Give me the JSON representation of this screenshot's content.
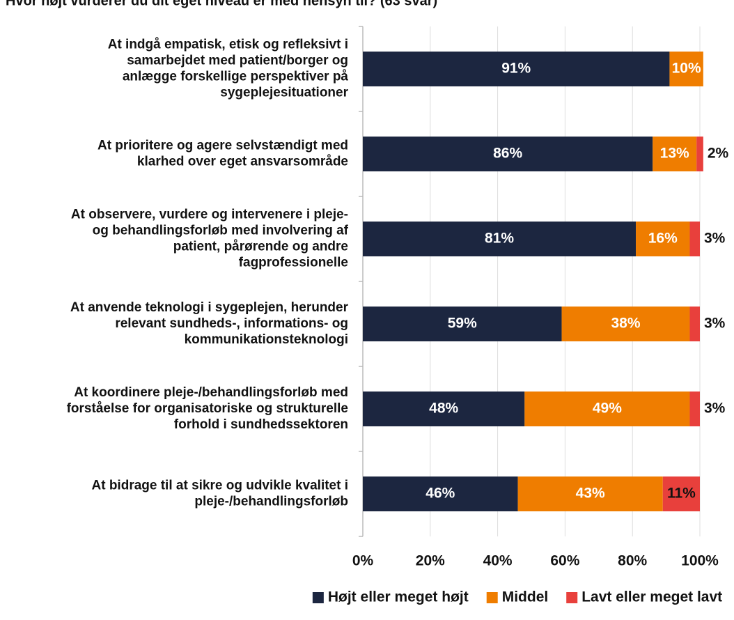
{
  "chart_data": {
    "type": "stacked_barh",
    "title": "Hvor højt vurderer du dit eget niveau er med hensyn til? (63 svar)",
    "categories": [
      [
        "At indgå empatisk, etisk og refleksivt i",
        "samarbejdet med patient/borger og",
        "anlægge forskellige perspektiver på",
        "sygeplejesituationer"
      ],
      [
        "At prioritere og agere selvstændigt med",
        "klarhed over eget ansvarsområde"
      ],
      [
        "At observere, vurdere og intervenere i pleje-",
        "og behandlingsforløb med involvering af",
        "patient, pårørende og andre",
        "fagprofessionelle"
      ],
      [
        "At anvende teknologi i sygeplejen, herunder",
        "relevant sundheds-, informations- og",
        "kommunikationsteknologi"
      ],
      [
        "At koordinere pleje-/behandlingsforløb med",
        "forståelse for organisatoriske og strukturelle",
        "forhold i sundhedssektoren"
      ],
      [
        "At bidrage til at sikre og udvikle kvalitet i",
        "pleje-/behandlingsforløb"
      ]
    ],
    "series": [
      {
        "name": "Højt eller meget højt",
        "color": "#1c2640",
        "values": [
          91,
          86,
          81,
          59,
          48,
          46
        ],
        "value_labels": [
          "91%",
          "86%",
          "81%",
          "59%",
          "48%",
          "46%"
        ]
      },
      {
        "name": "Middel",
        "color": "#ef7d00",
        "values": [
          10,
          13,
          16,
          38,
          49,
          43
        ],
        "value_labels": [
          "10%",
          "13%",
          "16%",
          "38%",
          "49%",
          "43%"
        ]
      },
      {
        "name": "Lavt eller meget lavt",
        "color": "#e8403c",
        "values": [
          null,
          2,
          3,
          3,
          3,
          11
        ],
        "value_labels": [
          null,
          "2%",
          "3%",
          "3%",
          "3%",
          "11%"
        ]
      }
    ],
    "xlim": [
      0,
      100
    ],
    "xticks": [
      {
        "value": 0,
        "label": "0%"
      },
      {
        "value": 20,
        "label": "20%"
      },
      {
        "value": 40,
        "label": "40%"
      },
      {
        "value": 60,
        "label": "60%"
      },
      {
        "value": 80,
        "label": "80%"
      },
      {
        "value": 100,
        "label": "100%"
      }
    ],
    "grid": true,
    "legend": "bottom"
  }
}
